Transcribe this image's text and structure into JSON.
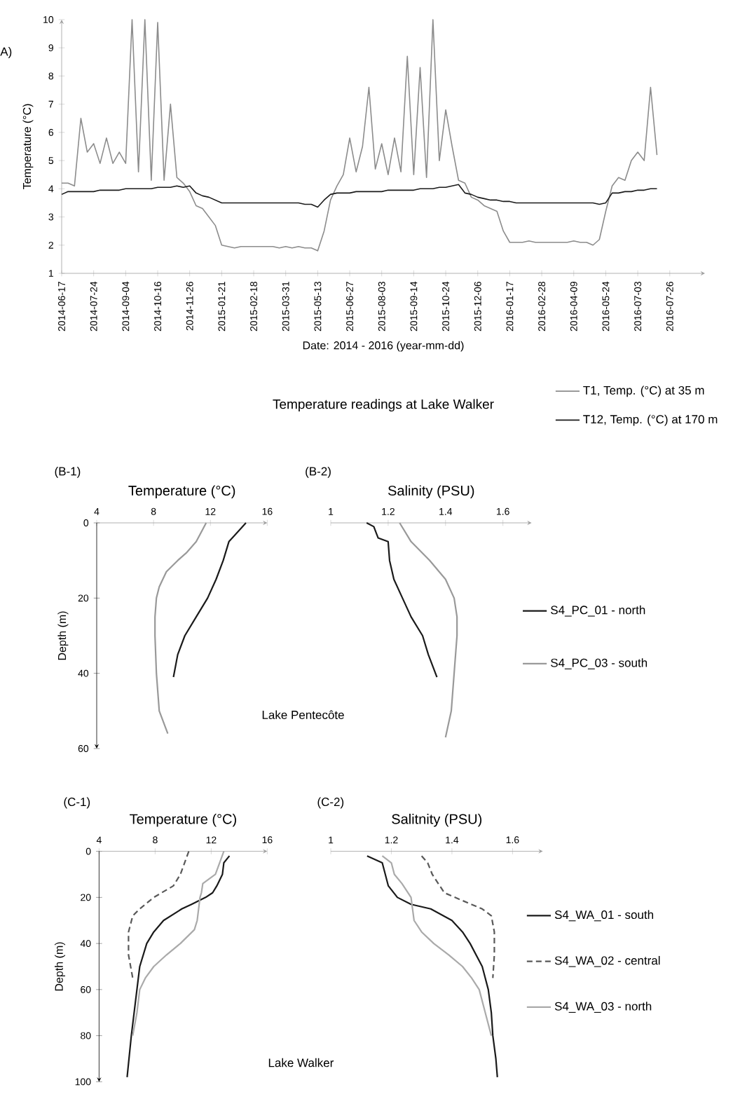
{
  "chart_data": [
    {
      "type": "line",
      "title": "Temperature readings at Lake Walker",
      "xlabel": "Date: 2014 - 2016 (year-mm-dd)",
      "ylabel": "Temperature (°C)",
      "annotations": [
        "A)"
      ],
      "categories": [
        "2014-06-17",
        null,
        null,
        null,
        null,
        "2014-07-24",
        null,
        null,
        null,
        null,
        "2014-09-04",
        null,
        null,
        null,
        null,
        "2014-10-16",
        null,
        null,
        null,
        null,
        "2014-11-26",
        null,
        null,
        null,
        null,
        "2015-01-21",
        null,
        null,
        null,
        null,
        "2015-02-18",
        null,
        null,
        null,
        null,
        "2015-03-31",
        null,
        null,
        null,
        null,
        "2015-05-13",
        null,
        null,
        null,
        null,
        "2015-06-27",
        null,
        null,
        null,
        null,
        "2015-08-03",
        null,
        null,
        null,
        null,
        "2015-09-14",
        null,
        null,
        null,
        null,
        "2015-10-24",
        null,
        null,
        null,
        null,
        "2015-12-06",
        null,
        null,
        null,
        null,
        "2016-01-17",
        null,
        null,
        null,
        null,
        "2016-02-28",
        null,
        null,
        null,
        null,
        "2016-04-09",
        null,
        null,
        null,
        null,
        "2016-05-24",
        null,
        null,
        null,
        null,
        "2016-07-03",
        null,
        null,
        null,
        null,
        "2016-07-26"
      ],
      "ylim": [
        1,
        10
      ],
      "yticks": [
        1,
        2,
        3,
        4,
        5,
        6,
        7,
        8,
        9,
        10
      ],
      "legend": "bottom right",
      "series": [
        {
          "name": "T1, Temp. (°C) at 35 m",
          "color": "#8c8c8c",
          "values": [
            4.2,
            4.2,
            4.1,
            6.5,
            5.3,
            5.6,
            4.9,
            5.8,
            4.9,
            5.3,
            4.9,
            10,
            4.6,
            10,
            4.3,
            9.9,
            4.3,
            7.0,
            4.4,
            4.2,
            3.9,
            3.4,
            3.3,
            3.0,
            2.7,
            2.0,
            1.95,
            1.9,
            1.95,
            1.95,
            1.95,
            1.95,
            1.95,
            1.95,
            1.9,
            1.95,
            1.9,
            1.95,
            1.9,
            1.9,
            1.8,
            2.5,
            3.6,
            4.1,
            4.5,
            5.8,
            4.6,
            5.5,
            7.6,
            4.7,
            5.6,
            4.5,
            5.8,
            4.6,
            8.7,
            4.5,
            8.3,
            4.4,
            10,
            5.0,
            6.8,
            5.5,
            4.3,
            4.2,
            3.7,
            3.6,
            3.4,
            3.3,
            3.2,
            2.5,
            2.1,
            2.1,
            2.1,
            2.15,
            2.1,
            2.1,
            2.1,
            2.1,
            2.1,
            2.1,
            2.15,
            2.1,
            2.1,
            2.0,
            2.2,
            3.2,
            4.1,
            4.4,
            4.3,
            5.0,
            5.3,
            5.0,
            7.6,
            5.2,
            null,
            null
          ]
        },
        {
          "name": "T12, Temp. (°C) at 170 m",
          "color": "#1a1a1a",
          "values": [
            3.8,
            3.9,
            3.9,
            3.9,
            3.9,
            3.9,
            3.95,
            3.95,
            3.95,
            3.95,
            4.0,
            4.0,
            4.0,
            4.0,
            4.0,
            4.05,
            4.05,
            4.05,
            4.1,
            4.05,
            4.1,
            3.85,
            3.75,
            3.7,
            3.6,
            3.5,
            3.5,
            3.5,
            3.5,
            3.5,
            3.5,
            3.5,
            3.5,
            3.5,
            3.5,
            3.5,
            3.5,
            3.5,
            3.45,
            3.45,
            3.35,
            3.6,
            3.8,
            3.85,
            3.85,
            3.85,
            3.9,
            3.9,
            3.9,
            3.9,
            3.9,
            3.95,
            3.95,
            3.95,
            3.95,
            3.95,
            4.0,
            4.0,
            4.0,
            4.05,
            4.05,
            4.1,
            4.15,
            3.85,
            3.8,
            3.7,
            3.65,
            3.6,
            3.6,
            3.55,
            3.55,
            3.5,
            3.5,
            3.5,
            3.5,
            3.5,
            3.5,
            3.5,
            3.5,
            3.5,
            3.5,
            3.5,
            3.5,
            3.5,
            3.45,
            3.5,
            3.85,
            3.85,
            3.9,
            3.9,
            3.95,
            3.95,
            4.0,
            4.0,
            null,
            null
          ]
        }
      ]
    },
    {
      "type": "line",
      "xlabel": "Temperature (°C)",
      "ylabel": "Depth (m)",
      "annotations": [
        "(B-1)",
        "Lake Pentecôte"
      ],
      "xlim": [
        4,
        16
      ],
      "xticks": [
        4,
        8,
        12,
        16
      ],
      "ylim": [
        60,
        0
      ],
      "yticks": [
        0,
        20,
        40,
        60
      ],
      "series": [
        {
          "color": "#1a1a1a",
          "x": [
            14.5,
            13.3,
            12.9,
            12.4,
            11.8,
            11.0,
            10.2,
            9.7,
            9.4
          ],
          "values": [
            0,
            5,
            10,
            15,
            20,
            25,
            30,
            35,
            41
          ]
        },
        {
          "color": "#999999",
          "x": [
            11.7,
            11.0,
            10.3,
            9.7,
            8.9,
            8.4,
            8.2,
            8.1,
            8.1,
            8.2,
            8.4,
            9.0
          ],
          "values": [
            0,
            5,
            8,
            10,
            13,
            17,
            20,
            25,
            30,
            40,
            50,
            56
          ]
        }
      ]
    },
    {
      "type": "line",
      "xlabel": "Salinity (PSU)",
      "annotations": [
        "(B-2)"
      ],
      "legend": "right",
      "tick_labels": "x",
      "xlim": [
        1,
        1.7
      ],
      "xticks": [
        1,
        1.2,
        1.4,
        1.6
      ],
      "ylim": [
        60,
        0
      ],
      "series": [
        {
          "name": "S4_PC_01 - north",
          "color": "#1a1a1a",
          "x": [
            1.125,
            1.15,
            1.165,
            1.2,
            1.205,
            1.22,
            1.25,
            1.28,
            1.32,
            1.34,
            1.37
          ],
          "values": [
            0,
            1,
            4,
            5,
            10,
            15,
            20,
            25,
            30,
            35,
            41
          ]
        },
        {
          "name": "S4_PC_03 - south",
          "color": "#999999",
          "x": [
            1.24,
            1.28,
            1.345,
            1.4,
            1.43,
            1.44,
            1.44,
            1.43,
            1.42,
            1.4
          ],
          "values": [
            0,
            5,
            10,
            15,
            20,
            25,
            30,
            40,
            50,
            57
          ]
        }
      ]
    },
    {
      "type": "line",
      "xlabel": "Temperature (°C)",
      "ylabel": "Depth (m)",
      "annotations": [
        "(C-1)",
        "Lake Walker"
      ],
      "xlim": [
        4,
        16
      ],
      "xticks": [
        4,
        8,
        12,
        16
      ],
      "ylim": [
        100,
        0
      ],
      "yticks": [
        0,
        20,
        40,
        60,
        80,
        100
      ],
      "series": [
        {
          "color": "#1a1a1a",
          "x": [
            13.3,
            12.9,
            12.8,
            12.4,
            12.1,
            11.6,
            10.6,
            9.9,
            8.6,
            7.9,
            7.4,
            6.9,
            6.7,
            6.3,
            6.0
          ],
          "values": [
            2,
            5,
            10,
            15,
            18,
            20,
            23,
            25,
            30,
            35,
            40,
            50,
            60,
            80,
            98
          ]
        },
        {
          "color": "#595959",
          "line_style": "dashed",
          "x": [
            10.4,
            10.1,
            9.8,
            9.3,
            7.9,
            6.9,
            6.4,
            6.1,
            6.1,
            6.4
          ],
          "values": [
            0,
            5,
            10,
            15,
            20,
            25,
            28,
            35,
            45,
            55
          ]
        },
        {
          "color": "#aaaaaa",
          "x": [
            12.9,
            12.6,
            12.3,
            11.4,
            11.3,
            11.2,
            11.1,
            11.0,
            10.8,
            9.8,
            8.8,
            7.9,
            7.3,
            6.9,
            6.7,
            6.4
          ],
          "values": [
            0,
            5,
            10,
            14,
            18,
            20,
            25,
            30,
            34,
            40,
            45,
            50,
            55,
            60,
            70,
            80
          ]
        }
      ]
    },
    {
      "type": "line",
      "xlabel": "Salitnity (PSU)",
      "annotations": [
        "(C-2)"
      ],
      "legend": "right",
      "tick_labels": "x",
      "xlim": [
        1,
        1.7
      ],
      "xticks": [
        1,
        1.2,
        1.4,
        1.6
      ],
      "ylim": [
        100,
        0
      ],
      "series": [
        {
          "name": "S4_WA_01 - south",
          "color": "#1a1a1a",
          "x": [
            1.12,
            1.17,
            1.18,
            1.19,
            1.22,
            1.265,
            1.33,
            1.4,
            1.435,
            1.46,
            1.5,
            1.52,
            1.53,
            1.535,
            1.545,
            1.55
          ],
          "values": [
            2,
            5,
            10,
            15,
            20,
            23,
            25,
            30,
            35,
            40,
            50,
            60,
            70,
            80,
            90,
            98
          ]
        },
        {
          "name": "S4_WA_02 - central",
          "color": "#595959",
          "line_style": "dashed",
          "x": [
            1.3,
            1.32,
            1.335,
            1.36,
            1.375,
            1.41,
            1.5,
            1.53,
            1.54,
            1.54,
            1.535
          ],
          "values": [
            2,
            5,
            10,
            15,
            18,
            20,
            25,
            28,
            35,
            45,
            55
          ]
        },
        {
          "name": "S4_WA_03 - north",
          "color": "#aaaaaa",
          "x": [
            1.17,
            1.2,
            1.21,
            1.235,
            1.265,
            1.27,
            1.275,
            1.3,
            1.34,
            1.39,
            1.435,
            1.465,
            1.49,
            1.51,
            1.53
          ],
          "values": [
            2,
            5,
            10,
            14,
            20,
            25,
            30,
            35,
            40,
            45,
            50,
            55,
            60,
            70,
            80
          ]
        }
      ]
    }
  ]
}
